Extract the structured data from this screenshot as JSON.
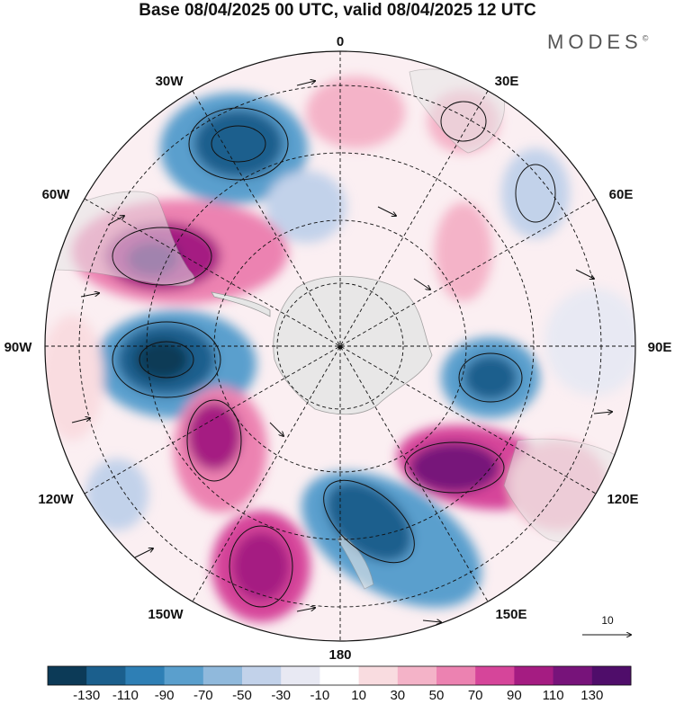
{
  "header": {
    "title": "Base 08/04/2025 00 UTC, valid 08/04/2025 12 UTC",
    "brand": "MODES",
    "brand_mark": "©"
  },
  "map": {
    "projection": "south-polar-stereographic",
    "longitude_labels": [
      "0",
      "30E",
      "60E",
      "90E",
      "120E",
      "150E",
      "180",
      "150W",
      "120W",
      "90W",
      "60W",
      "30W"
    ],
    "vector_reference": "10",
    "anomaly_features": [
      {
        "type": "low",
        "value": -120,
        "near": "30W"
      },
      {
        "type": "high",
        "value": 130,
        "near": "60W"
      },
      {
        "type": "low",
        "value": -140,
        "near": "90W"
      },
      {
        "type": "high",
        "value": 120,
        "near": "120W"
      },
      {
        "type": "high",
        "value": 100,
        "near": "150W"
      },
      {
        "type": "low",
        "value": -100,
        "near": "150E"
      },
      {
        "type": "high",
        "value": 130,
        "near": "120E"
      },
      {
        "type": "low",
        "value": -90,
        "near": "90E"
      },
      {
        "type": "high",
        "value": 50,
        "near": "0"
      },
      {
        "type": "high",
        "value": 40,
        "near": "30E"
      },
      {
        "type": "low",
        "value": -60,
        "near": "60E"
      },
      {
        "type": "high",
        "value": 50,
        "near": "30E inner"
      }
    ],
    "colors": {
      "land": "#e6e6e6",
      "coast": "#9a9a9a",
      "graticule": "#111111"
    }
  },
  "colorbar": {
    "labels": [
      "-130",
      "-110",
      "-90",
      "-70",
      "-50",
      "-30",
      "-10",
      "10",
      "30",
      "50",
      "70",
      "90",
      "110",
      "130"
    ],
    "colors": [
      "#0c3a57",
      "#1b5f8d",
      "#2e7fb5",
      "#5a9fcd",
      "#90b9dc",
      "#c2d2ea",
      "#e8e9f3",
      "#ffffff",
      "#f9dce0",
      "#f4b3c8",
      "#ec82b1",
      "#d6459a",
      "#a51c82",
      "#77137a",
      "#4f0d6a"
    ]
  }
}
